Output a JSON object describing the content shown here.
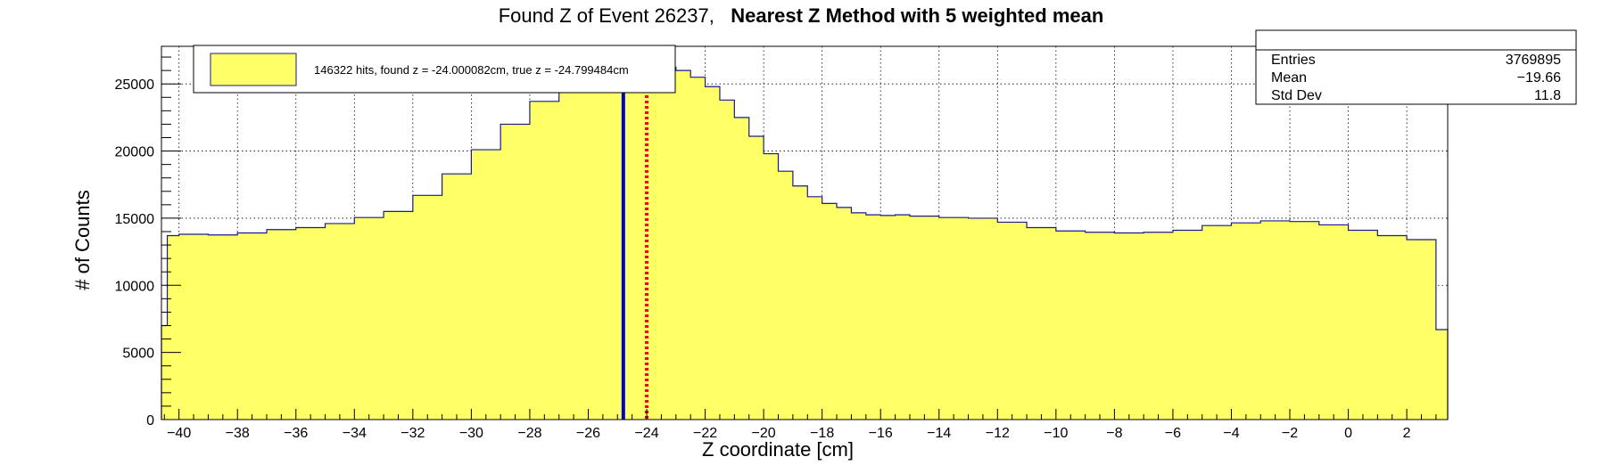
{
  "chart_data": {
    "type": "bar",
    "title_prefix": "Found Z of Event 26237,",
    "title_bold": "Nearest Z Method with 5 weighted mean",
    "xlabel": "Z coordinate [cm]",
    "ylabel": "# of Counts",
    "xlim": [
      -40.6,
      3.4
    ],
    "ylim": [
      0,
      27800
    ],
    "x_ticks": [
      -40,
      -38,
      -36,
      -34,
      -32,
      -30,
      -28,
      -26,
      -24,
      -22,
      -20,
      -18,
      -16,
      -14,
      -12,
      -10,
      -8,
      -6,
      -4,
      -2,
      0,
      2
    ],
    "y_ticks": [
      0,
      5000,
      10000,
      15000,
      20000,
      25000
    ],
    "grid": true,
    "fill_color": "#ffff66",
    "line_color": "#1a1a8c",
    "histogram": {
      "x": [
        -40.6,
        -40.4,
        -40.0,
        -39.0,
        -38.0,
        -37.0,
        -36.0,
        -35.0,
        -34.0,
        -33.0,
        -32.0,
        -31.0,
        -30.0,
        -29.0,
        -28.0,
        -27.0,
        -26.0,
        -25.5,
        -25.0,
        -24.5,
        -24.0,
        -23.5,
        -23.0,
        -22.5,
        -22.0,
        -21.5,
        -21.0,
        -20.5,
        -20.0,
        -19.5,
        -19.0,
        -18.5,
        -18.0,
        -17.5,
        -17.0,
        -16.5,
        -16.0,
        -15.5,
        -15.0,
        -14.0,
        -13.0,
        -12.0,
        -11.0,
        -10.0,
        -9.0,
        -8.0,
        -7.0,
        -6.0,
        -5.0,
        -4.0,
        -3.0,
        -2.0,
        -1.0,
        0.0,
        1.0,
        2.0,
        3.0,
        3.2,
        3.4
      ],
      "counts": [
        7000,
        13700,
        13800,
        13750,
        13900,
        14150,
        14300,
        14600,
        15050,
        15500,
        16700,
        18300,
        20100,
        22000,
        23700,
        25000,
        25800,
        26100,
        26250,
        26300,
        26350,
        26250,
        26000,
        25500,
        24800,
        23800,
        22500,
        21100,
        19800,
        18500,
        17400,
        16600,
        16100,
        15800,
        15400,
        15250,
        15200,
        15250,
        15150,
        15050,
        15000,
        14700,
        14300,
        14050,
        13950,
        13900,
        13950,
        14100,
        14450,
        14650,
        14800,
        14750,
        14500,
        14100,
        13700,
        13400,
        6700,
        6700,
        0
      ]
    },
    "lines": [
      {
        "name": "true z",
        "x": -24.799484,
        "color": "#0000cc",
        "style": "solid"
      },
      {
        "name": "found z",
        "x": -24.000082,
        "color": "#ff0000",
        "style": "dotted"
      }
    ],
    "legend": {
      "position": "top-left",
      "entry": "146322 hits, found z = -24.000082cm, true z = -24.799484cm"
    },
    "stats_box": {
      "position": "top-right",
      "rows": [
        {
          "label": "Entries",
          "value": "3769895"
        },
        {
          "label": "Mean",
          "value": "−19.66"
        },
        {
          "label": "Std Dev",
          "value": "11.8"
        }
      ]
    }
  }
}
